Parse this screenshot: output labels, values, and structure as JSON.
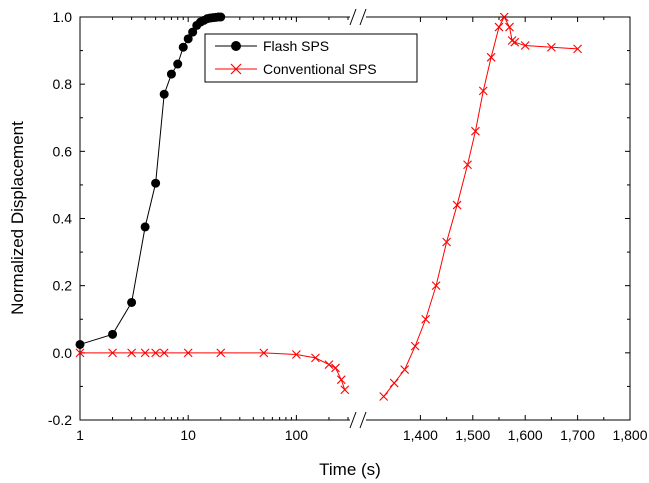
{
  "chart_data": {
    "type": "scatter",
    "xlabel": "Time (s)",
    "ylabel": "Normalized Displacement",
    "x_axis": {
      "segments": [
        {
          "scale": "log",
          "range": [
            1,
            300
          ],
          "ticks": [
            1,
            10,
            100
          ],
          "tick_labels": [
            "1",
            "10",
            "100"
          ]
        },
        {
          "scale": "linear",
          "range": [
            1300,
            1800
          ],
          "ticks": [
            1400,
            1500,
            1600,
            1700,
            1800
          ],
          "tick_labels": [
            "1,400",
            "1,500",
            "1,600",
            "1,700",
            "1,800"
          ]
        }
      ],
      "break": "//"
    },
    "ylim": [
      -0.2,
      1.0
    ],
    "y_ticks": [
      -0.2,
      0.0,
      0.2,
      0.4,
      0.6,
      0.8,
      1.0
    ],
    "y_tick_labels": [
      "-0.2",
      "0.0",
      "0.2",
      "0.4",
      "0.6",
      "0.8",
      "1.0"
    ],
    "grid": false,
    "legend_position": "top-center",
    "series": [
      {
        "name": "Flash SPS",
        "color": "#000000",
        "marker": "filled-circle",
        "points": [
          [
            1,
            0.025
          ],
          [
            2,
            0.055
          ],
          [
            3,
            0.15
          ],
          [
            4,
            0.375
          ],
          [
            5,
            0.505
          ],
          [
            6,
            0.77
          ],
          [
            7,
            0.83
          ],
          [
            8,
            0.86
          ],
          [
            9,
            0.91
          ],
          [
            10,
            0.935
          ],
          [
            11,
            0.955
          ],
          [
            12,
            0.975
          ],
          [
            13,
            0.985
          ],
          [
            14,
            0.99
          ],
          [
            15,
            0.995
          ],
          [
            16,
            0.997
          ],
          [
            17,
            0.998
          ],
          [
            18,
            0.999
          ],
          [
            19,
            1.0
          ],
          [
            20,
            1.0
          ]
        ]
      },
      {
        "name": "Conventional SPS",
        "color": "#ff0000",
        "marker": "x",
        "points": [
          [
            1,
            0.0
          ],
          [
            2,
            0.0
          ],
          [
            3,
            0.0
          ],
          [
            4,
            0.0
          ],
          [
            5,
            0.0
          ],
          [
            6,
            0.0
          ],
          [
            10,
            0.0
          ],
          [
            20,
            0.0
          ],
          [
            50,
            0.0
          ],
          [
            100,
            -0.005
          ],
          [
            150,
            -0.015
          ],
          [
            200,
            -0.035
          ],
          [
            230,
            -0.045
          ],
          [
            260,
            -0.08
          ],
          [
            280,
            -0.11
          ],
          [
            1330,
            -0.13
          ],
          [
            1350,
            -0.09
          ],
          [
            1370,
            -0.05
          ],
          [
            1390,
            0.02
          ],
          [
            1410,
            0.1
          ],
          [
            1430,
            0.2
          ],
          [
            1450,
            0.33
          ],
          [
            1470,
            0.44
          ],
          [
            1490,
            0.56
          ],
          [
            1505,
            0.66
          ],
          [
            1520,
            0.78
          ],
          [
            1535,
            0.88
          ],
          [
            1550,
            0.97
          ],
          [
            1560,
            1.0
          ],
          [
            1570,
            0.97
          ],
          [
            1575,
            0.93
          ],
          [
            1580,
            0.925
          ],
          [
            1600,
            0.915
          ],
          [
            1650,
            0.91
          ],
          [
            1700,
            0.905
          ]
        ]
      }
    ]
  }
}
